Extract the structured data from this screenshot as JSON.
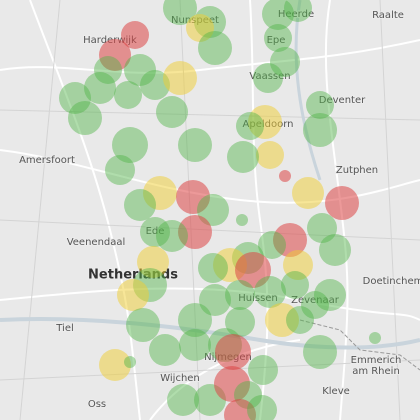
{
  "map": {
    "labels": [
      "Harderwijk",
      "Nunspeet",
      "Heerde",
      "Raalte",
      "Epe",
      "Vaassen",
      "Deventer",
      "Apeldoorn",
      "Amersfoort",
      "Zutphen",
      "Ede",
      "Veenendaal",
      "Netherlands",
      "Huissen",
      "Zevenaar",
      "Doetinchem",
      "Tiel",
      "Nijmegen",
      "Wijchen",
      "Emmerich",
      "am Rhein",
      "Kleve",
      "Oss"
    ]
  }
}
